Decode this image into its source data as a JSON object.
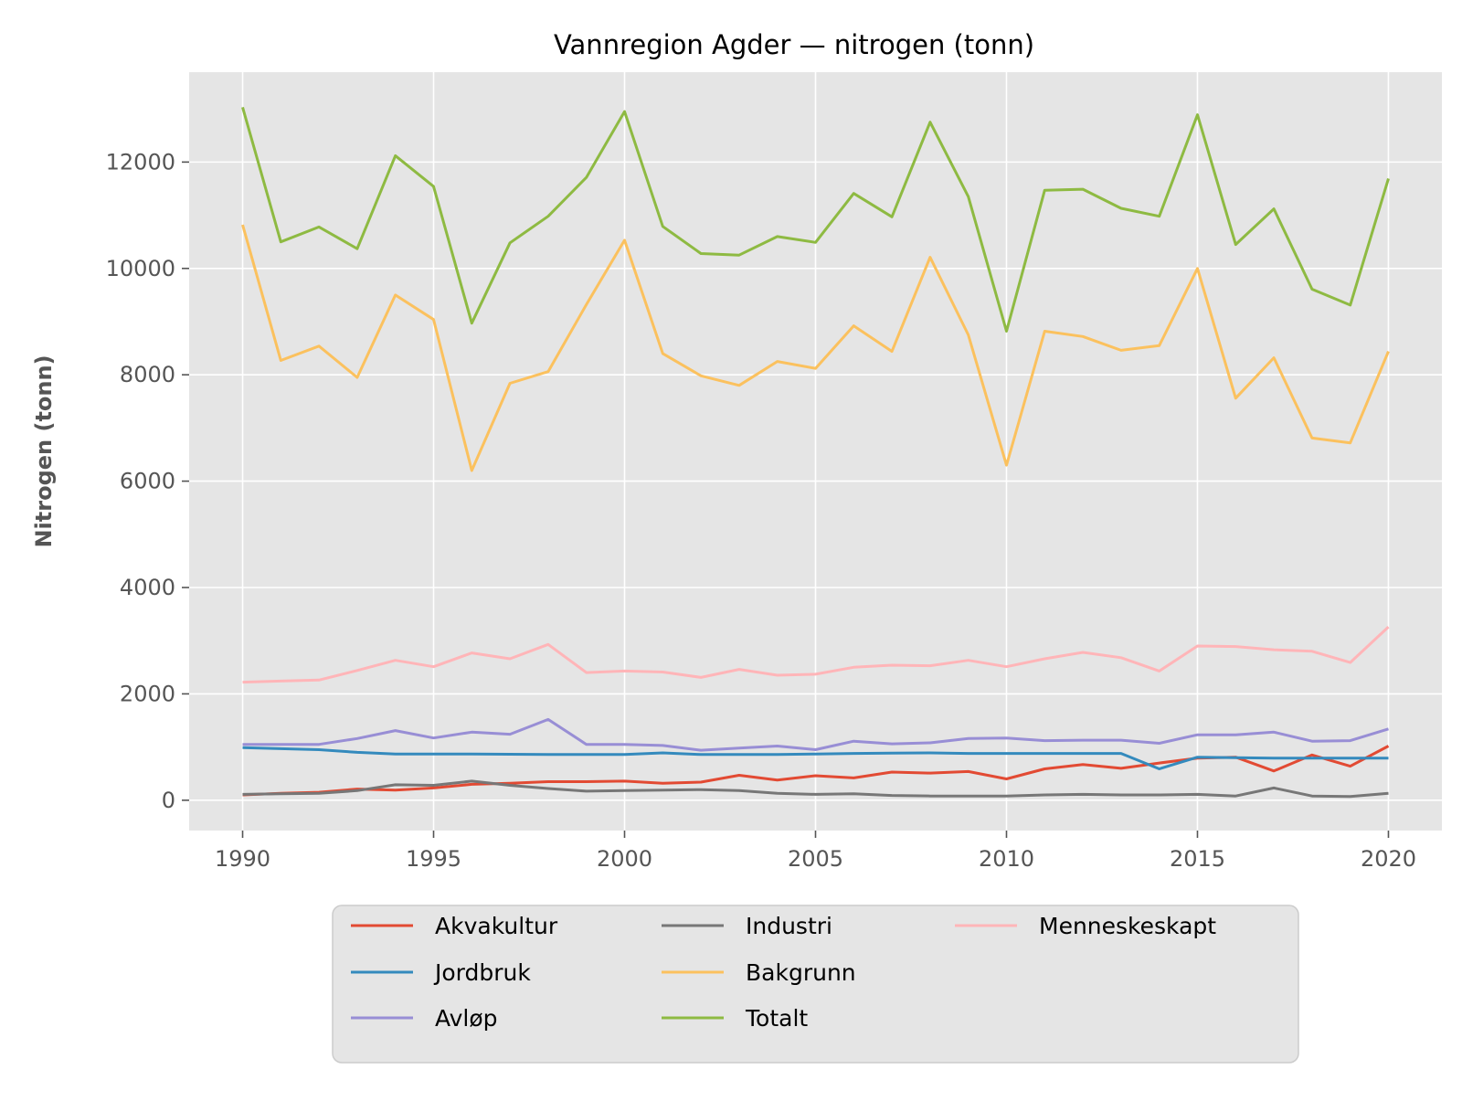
{
  "chart_data": {
    "type": "line",
    "title": "Vannregion Agder — nitrogen (tonn)",
    "xlabel": "",
    "ylabel": "Nitrogen (tonn)",
    "xlim": [
      1988.6,
      2021.4
    ],
    "ylim": [
      -570,
      13690
    ],
    "x_ticks": [
      1990,
      1995,
      2000,
      2005,
      2010,
      2015,
      2020
    ],
    "y_ticks": [
      0,
      2000,
      4000,
      6000,
      8000,
      10000,
      12000
    ],
    "grid": true,
    "legend_position": "below",
    "x": [
      1990,
      1991,
      1992,
      1993,
      1994,
      1995,
      1996,
      1997,
      1998,
      1999,
      2000,
      2001,
      2002,
      2003,
      2004,
      2005,
      2006,
      2007,
      2008,
      2009,
      2010,
      2011,
      2012,
      2013,
      2014,
      2015,
      2016,
      2017,
      2018,
      2019,
      2020
    ],
    "series": [
      {
        "name": "Akvakultur",
        "color": "#E24A33",
        "values": [
          100,
          130,
          150,
          210,
          190,
          230,
          300,
          320,
          350,
          350,
          360,
          320,
          340,
          470,
          380,
          460,
          420,
          530,
          510,
          540,
          400,
          590,
          670,
          600,
          700,
          790,
          810,
          550,
          850,
          640,
          1020
        ]
      },
      {
        "name": "Jordbruk",
        "color": "#348ABD",
        "values": [
          990,
          970,
          950,
          900,
          870,
          870,
          870,
          865,
          860,
          860,
          860,
          890,
          860,
          860,
          860,
          870,
          880,
          885,
          890,
          880,
          880,
          880,
          880,
          880,
          590,
          810,
          800,
          790,
          790,
          790,
          790
        ]
      },
      {
        "name": "Avløp",
        "color": "#988ED5",
        "values": [
          1050,
          1050,
          1050,
          1160,
          1310,
          1170,
          1280,
          1240,
          1520,
          1050,
          1050,
          1030,
          940,
          980,
          1020,
          950,
          1110,
          1060,
          1080,
          1160,
          1170,
          1120,
          1130,
          1130,
          1070,
          1230,
          1230,
          1280,
          1110,
          1120,
          1340
        ]
      },
      {
        "name": "Industri",
        "color": "#777777",
        "values": [
          110,
          120,
          130,
          180,
          290,
          280,
          360,
          280,
          220,
          170,
          180,
          190,
          200,
          180,
          130,
          110,
          120,
          90,
          80,
          80,
          80,
          100,
          110,
          100,
          100,
          110,
          80,
          230,
          80,
          70,
          130
        ]
      },
      {
        "name": "Bakgrunn",
        "color": "#FBC15E",
        "values": [
          10820,
          8270,
          8540,
          7950,
          9500,
          9040,
          6200,
          7840,
          8060,
          9320,
          10530,
          8400,
          7980,
          7800,
          8250,
          8120,
          8920,
          8440,
          10210,
          8750,
          6300,
          8820,
          8720,
          8460,
          8550,
          10000,
          7560,
          8320,
          6810,
          6720,
          8440
        ]
      },
      {
        "name": "Totalt",
        "color": "#8EBA42",
        "values": [
          13030,
          10500,
          10780,
          10370,
          12120,
          11540,
          8970,
          10480,
          10980,
          11710,
          12950,
          10790,
          10280,
          10250,
          10600,
          10490,
          11410,
          10970,
          12750,
          11350,
          8820,
          11470,
          11490,
          11130,
          10980,
          12890,
          10450,
          11120,
          9610,
          9310,
          11690
        ]
      },
      {
        "name": "Menneskeskapt",
        "color": "#FFB5B8",
        "values": [
          2220,
          2240,
          2260,
          2440,
          2630,
          2510,
          2770,
          2660,
          2930,
          2400,
          2430,
          2410,
          2310,
          2460,
          2350,
          2370,
          2500,
          2540,
          2530,
          2630,
          2510,
          2660,
          2780,
          2680,
          2430,
          2900,
          2890,
          2830,
          2800,
          2590,
          3260
        ]
      }
    ]
  }
}
